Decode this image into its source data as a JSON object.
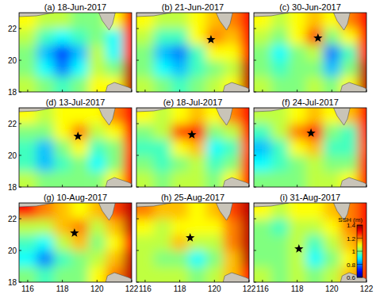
{
  "chart_data": {
    "type": "heatmap",
    "xlim": [
      115.5,
      122
    ],
    "ylim": [
      18,
      23
    ],
    "xticks": [
      116,
      118,
      120,
      122
    ],
    "yticks": [
      18,
      20,
      22
    ],
    "x": [
      116,
      117,
      118,
      119,
      120,
      121,
      122
    ],
    "y": [
      18.5,
      19.5,
      20.5,
      21.5,
      22.5
    ],
    "colorbar": {
      "label": "SSH (m)",
      "range": [
        0.6,
        1.4
      ],
      "ticks": [
        0.6,
        0.8,
        1,
        1.2,
        1.4
      ]
    },
    "land": [
      [
        [
          115.5,
          22.75
        ],
        [
          116.5,
          22.8
        ],
        [
          117.5,
          23.0
        ],
        [
          115.5,
          23.0
        ]
      ],
      [
        [
          120.1,
          23.0
        ],
        [
          120.3,
          22.5
        ],
        [
          120.7,
          21.9
        ],
        [
          120.9,
          22.3
        ],
        [
          121.05,
          23.0
        ]
      ],
      [
        [
          120.5,
          18.0
        ],
        [
          120.6,
          18.4
        ],
        [
          121.0,
          18.6
        ],
        [
          121.8,
          18.3
        ],
        [
          122.0,
          18.2
        ],
        [
          122.0,
          18.0
        ]
      ]
    ],
    "panels": [
      {
        "title": "(a) 18-Jun-2017",
        "star": null,
        "cells": [
          [
            1.05,
            1.0,
            0.95,
            1.0,
            1.1,
            1.1,
            1.35
          ],
          [
            1.0,
            0.9,
            0.8,
            0.9,
            1.05,
            1.0,
            1.35
          ],
          [
            1.0,
            0.85,
            0.75,
            0.85,
            1.05,
            0.9,
            1.3
          ],
          [
            1.05,
            0.95,
            0.9,
            0.95,
            1.0,
            0.9,
            1.3
          ],
          [
            1.1,
            1.05,
            1.05,
            1.0,
            1.0,
            1.1,
            1.3
          ]
        ]
      },
      {
        "title": "(b) 21-Jun-2017",
        "star": [
          119.8,
          21.3
        ],
        "cells": [
          [
            1.05,
            1.0,
            0.95,
            1.0,
            1.05,
            1.1,
            1.35
          ],
          [
            1.0,
            0.9,
            0.85,
            0.95,
            1.0,
            1.05,
            1.35
          ],
          [
            1.0,
            0.85,
            0.8,
            0.95,
            1.1,
            1.1,
            1.3
          ],
          [
            1.05,
            0.95,
            0.95,
            1.1,
            1.2,
            1.15,
            1.3
          ],
          [
            1.1,
            1.05,
            1.05,
            1.1,
            1.15,
            1.2,
            1.3
          ]
        ]
      },
      {
        "title": "(c) 30-Jun-2017",
        "star": [
          119.2,
          21.4
        ],
        "cells": [
          [
            1.05,
            1.0,
            1.0,
            1.05,
            1.0,
            1.1,
            1.35
          ],
          [
            1.0,
            0.95,
            1.0,
            1.0,
            0.85,
            1.0,
            1.35
          ],
          [
            1.0,
            0.9,
            1.0,
            1.05,
            0.8,
            0.95,
            1.3
          ],
          [
            1.05,
            1.0,
            1.1,
            1.25,
            1.0,
            1.1,
            1.3
          ],
          [
            1.1,
            1.05,
            1.1,
            1.15,
            1.1,
            1.2,
            1.3
          ]
        ]
      },
      {
        "title": "(d) 13-Jul-2017",
        "star": [
          118.9,
          21.2
        ],
        "cells": [
          [
            1.05,
            1.0,
            1.0,
            1.0,
            1.0,
            1.1,
            1.3
          ],
          [
            0.95,
            0.85,
            0.95,
            1.0,
            0.9,
            1.0,
            1.3
          ],
          [
            0.95,
            0.85,
            1.0,
            1.1,
            0.95,
            1.0,
            1.25
          ],
          [
            1.0,
            1.0,
            1.1,
            1.2,
            1.05,
            1.1,
            1.3
          ],
          [
            1.1,
            1.05,
            1.1,
            1.1,
            1.1,
            1.2,
            1.3
          ]
        ]
      },
      {
        "title": "(e) 18-Jul-2017",
        "star": [
          118.7,
          21.3
        ],
        "cells": [
          [
            1.05,
            1.0,
            1.05,
            1.05,
            1.0,
            1.1,
            1.3
          ],
          [
            1.0,
            0.95,
            1.0,
            1.05,
            0.95,
            1.0,
            1.3
          ],
          [
            0.95,
            0.95,
            1.1,
            1.15,
            0.9,
            0.95,
            1.25
          ],
          [
            1.0,
            1.05,
            1.25,
            1.3,
            1.0,
            1.05,
            1.3
          ],
          [
            1.1,
            1.05,
            1.1,
            1.15,
            1.1,
            1.2,
            1.3
          ]
        ]
      },
      {
        "title": "(f) 24-Jul-2017",
        "star": [
          118.8,
          21.4
        ],
        "cells": [
          [
            1.0,
            1.0,
            1.0,
            1.05,
            1.05,
            1.1,
            1.3
          ],
          [
            0.9,
            0.95,
            1.0,
            1.05,
            1.0,
            1.0,
            1.3
          ],
          [
            0.85,
            0.95,
            1.1,
            1.15,
            0.95,
            0.95,
            1.25
          ],
          [
            0.95,
            1.05,
            1.2,
            1.3,
            1.0,
            0.95,
            1.3
          ],
          [
            1.05,
            1.05,
            1.1,
            1.15,
            1.1,
            1.15,
            1.3
          ]
        ]
      },
      {
        "title": "(g) 10-Aug-2017",
        "star": [
          118.7,
          21.1
        ],
        "cells": [
          [
            1.0,
            0.95,
            1.0,
            1.0,
            1.1,
            1.2,
            1.35
          ],
          [
            0.9,
            0.8,
            0.95,
            1.0,
            1.05,
            1.15,
            1.35
          ],
          [
            0.95,
            0.9,
            1.05,
            1.15,
            1.0,
            1.1,
            1.3
          ],
          [
            1.05,
            1.05,
            1.15,
            1.2,
            1.05,
            1.15,
            1.35
          ],
          [
            1.3,
            1.2,
            1.15,
            1.1,
            1.15,
            1.25,
            1.35
          ]
        ]
      },
      {
        "title": "(h) 25-Aug-2017",
        "star": [
          118.6,
          20.8
        ],
        "cells": [
          [
            1.05,
            1.05,
            1.05,
            1.0,
            1.05,
            1.15,
            1.3
          ],
          [
            1.05,
            1.0,
            1.0,
            0.9,
            1.0,
            1.15,
            1.35
          ],
          [
            1.05,
            1.05,
            1.15,
            1.05,
            1.05,
            1.2,
            1.35
          ],
          [
            1.1,
            1.05,
            1.1,
            1.1,
            1.1,
            1.2,
            1.35
          ],
          [
            1.2,
            1.15,
            1.15,
            1.1,
            1.15,
            1.25,
            1.35
          ]
        ]
      },
      {
        "title": "(i) 31-Aug-2017",
        "star": [
          118.1,
          20.1
        ],
        "cells": [
          [
            1.05,
            1.0,
            1.05,
            1.0,
            1.05,
            1.15,
            1.3
          ],
          [
            1.0,
            1.0,
            1.05,
            0.9,
            1.0,
            1.1,
            1.3
          ],
          [
            1.0,
            1.0,
            1.05,
            0.95,
            1.05,
            1.15,
            1.3
          ],
          [
            1.0,
            0.95,
            1.05,
            1.05,
            1.1,
            1.2,
            1.3
          ],
          [
            1.1,
            1.05,
            1.1,
            1.1,
            1.15,
            1.2,
            1.3
          ]
        ]
      }
    ]
  }
}
